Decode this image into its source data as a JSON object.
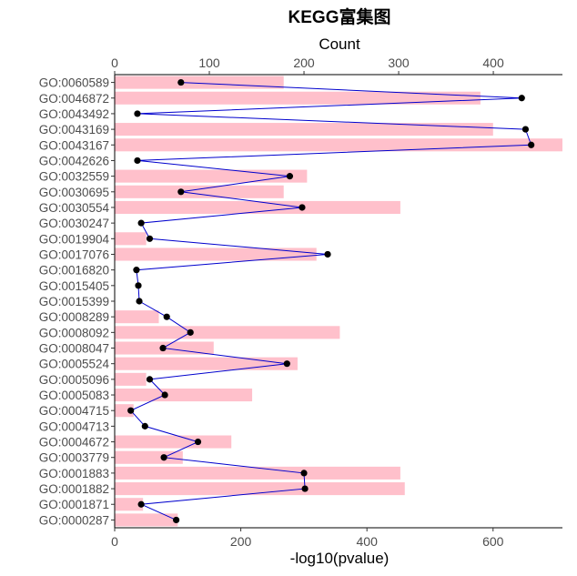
{
  "chart_data": {
    "type": "bar",
    "title": "KEGG富集图",
    "categories": [
      "GO:0060589",
      "GO:0046872",
      "GO:0043492",
      "GO:0043169",
      "GO:0043167",
      "GO:0042626",
      "GO:0032559",
      "GO:0030695",
      "GO:0030554",
      "GO:0030247",
      "GO:0019904",
      "GO:0017076",
      "GO:0016820",
      "GO:0015405",
      "GO:0015399",
      "GO:0008289",
      "GO:0008092",
      "GO:0008047",
      "GO:0005524",
      "GO:0005096",
      "GO:0005083",
      "GO:0004715",
      "GO:0004713",
      "GO:0004672",
      "GO:0003779",
      "GO:0001883",
      "GO:0001882",
      "GO:0001871",
      "GO:0000287"
    ],
    "bar_axis": {
      "label": "-log10(pvalue)",
      "range": [
        0,
        710
      ],
      "ticks": [
        0,
        200,
        400,
        600
      ],
      "tick_labels": [
        "0",
        "200",
        "400",
        "600"
      ],
      "position": "bottom"
    },
    "line_axis": {
      "label": "Count",
      "range": [
        0,
        473
      ],
      "ticks": [
        0,
        100,
        200,
        300,
        400
      ],
      "tick_labels": [
        "0",
        "100",
        "200",
        "300",
        "400"
      ],
      "position": "top"
    },
    "series": [
      {
        "type": "bar",
        "color": "#ffc0cb",
        "values": [
          268,
          580,
          0,
          600,
          710,
          0,
          305,
          268,
          453,
          0,
          50,
          320,
          0,
          0,
          0,
          70,
          357,
          157,
          290,
          50,
          218,
          30,
          0,
          185,
          108,
          453,
          460,
          45,
          100
        ]
      },
      {
        "type": "line",
        "color": "#0000cd",
        "marker_color": "#000000",
        "values": [
          70,
          430,
          24,
          434,
          440,
          24,
          185,
          70,
          198,
          28,
          37,
          225,
          23,
          25,
          26,
          55,
          80,
          51,
          182,
          37,
          53,
          17,
          32,
          88,
          52,
          200,
          201,
          28,
          65
        ]
      }
    ],
    "grid": false,
    "legend": "none"
  }
}
